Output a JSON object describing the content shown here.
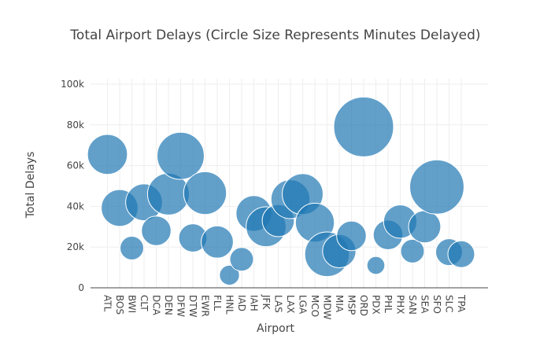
{
  "chart_data": {
    "type": "scatter",
    "title": "Total Airport Delays (Circle Size Represents Minutes Delayed)",
    "xlabel": "Airport",
    "ylabel": "Total Delays",
    "ylim": [
      0,
      100000
    ],
    "yticks": [
      0,
      20000,
      40000,
      60000,
      80000,
      100000
    ],
    "ytick_labels": [
      "0",
      "20k",
      "40k",
      "60k",
      "80k",
      "100k"
    ],
    "grid": true,
    "legend": "none",
    "marker_color": "#1f77b4",
    "categories": [
      "ATL",
      "BOS",
      "BWI",
      "CLT",
      "DCA",
      "DEN",
      "DFW",
      "DTW",
      "EWR",
      "FLL",
      "HNL",
      "IAD",
      "IAH",
      "JFK",
      "LAS",
      "LAX",
      "LGA",
      "MCO",
      "MDW",
      "MIA",
      "MSP",
      "ORD",
      "PDX",
      "PHL",
      "PHX",
      "SAN",
      "SEA",
      "SFO",
      "SLC",
      "TPA"
    ],
    "values": [
      65500,
      39200,
      19500,
      42000,
      28000,
      46000,
      64800,
      24500,
      46500,
      22500,
      6200,
      14000,
      36500,
      30000,
      33000,
      43500,
      46000,
      32000,
      16500,
      18000,
      25500,
      79000,
      11000,
      26000,
      32500,
      18000,
      30000,
      49500,
      17500,
      16500
    ],
    "size_minutes": [
      20,
      17,
      7,
      17,
      11,
      22,
      28,
      10,
      23,
      13,
      5,
      7,
      16,
      20,
      13,
      19,
      21,
      19,
      25,
      14,
      11,
      45,
      4,
      11,
      14,
      7,
      13,
      37,
      9,
      9
    ]
  }
}
